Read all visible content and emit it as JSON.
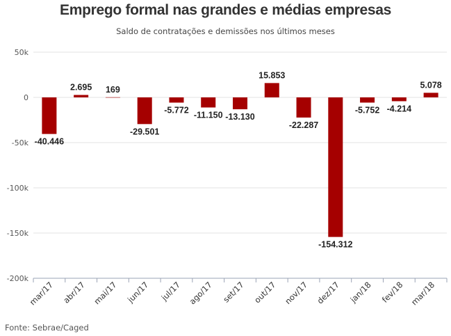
{
  "chart_data": {
    "type": "bar",
    "title": "Emprego formal nas grandes e médias empresas",
    "subtitle": "Saldo de contratações e demissões nos últimos meses",
    "source": "Fonte: Sebrae/Caged",
    "categories": [
      "mar/17",
      "abr/17",
      "mai/17",
      "jun/17",
      "jul/17",
      "ago/17",
      "set/17",
      "out/17",
      "nov/17",
      "dez/17",
      "jan/18",
      "fev/18",
      "mar/18"
    ],
    "values": [
      -40446,
      2695,
      169,
      -29501,
      -5772,
      -11150,
      -13130,
      15853,
      -22287,
      -154312,
      -5752,
      -4214,
      5078
    ],
    "data_labels": [
      "-40.446",
      "2.695",
      "169",
      "-29.501",
      "-5.772",
      "-11.150",
      "-13.130",
      "15.853",
      "-22.287",
      "-154.312",
      "-5.752",
      "-4.214",
      "5.078"
    ],
    "ylim": [
      -200000,
      50000
    ],
    "yticks": [
      50000,
      0,
      -50000,
      -100000,
      -150000,
      -200000
    ],
    "ytick_labels": [
      "50k",
      "0",
      "-50k",
      "-100k",
      "-150k",
      "-200k"
    ],
    "xlabel": "",
    "ylabel": "",
    "grid": true,
    "bar_color": "#a50000"
  }
}
